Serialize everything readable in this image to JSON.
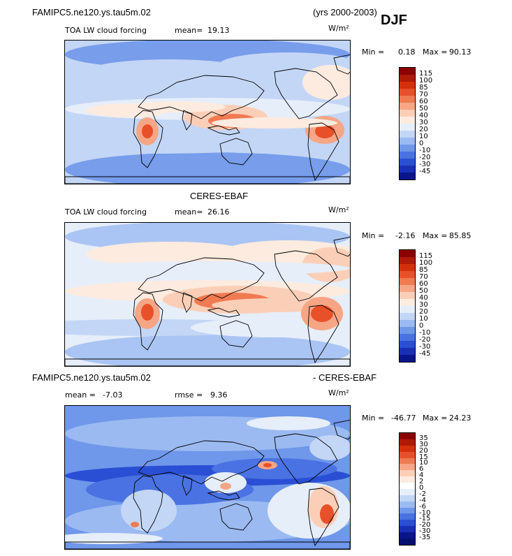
{
  "header": {
    "model": "FAMIPC5.ne120.ys.tau5m.02",
    "years": "(yrs 2000-2003)",
    "season": "DJF"
  },
  "panel1": {
    "var": "TOA LW cloud forcing",
    "mean_label": "mean=",
    "mean_value": "19.13",
    "units": "W/m²",
    "min_label": "Min =",
    "min_value": "0.18",
    "max_label": "Max =",
    "max_value": "90.13"
  },
  "panel2": {
    "title": "CERES-EBAF",
    "var": "TOA LW cloud forcing",
    "mean_label": "mean=",
    "mean_value": "26.16",
    "units": "W/m²",
    "min_label": "Min =",
    "min_value": "-2.16",
    "max_label": "Max =",
    "max_value": "85.85"
  },
  "panel3": {
    "title_left": "FAMIPC5.ne120.ys.tau5m.02",
    "title_right": "- CERES-EBAF",
    "mean_label": "mean =",
    "mean_value": "-7.03",
    "rmse_label": "rmse =",
    "rmse_value": "9.36",
    "units": "W/m²",
    "min_label": "Min =",
    "min_value": "-46.77",
    "max_label": "Max =",
    "max_value": "24.23"
  },
  "chart_data": [
    {
      "type": "heatmap",
      "title": "TOA LW cloud forcing",
      "colorbar_levels": [
        "115",
        "100",
        "85",
        "70",
        "60",
        "50",
        "40",
        "30",
        "20",
        "10",
        "0",
        "-10",
        "-20",
        "-30",
        "-45"
      ],
      "colors": [
        "#8b0000",
        "#b01a06",
        "#d4300c",
        "#e8502a",
        "#f07a52",
        "#f6a585",
        "#fbcfb7",
        "#fdebdf",
        "#e6eefa",
        "#c3d6f6",
        "#9bbaf1",
        "#6f97ea",
        "#4a72e2",
        "#2a4fd4",
        "#1a2fb8",
        "#0a148c"
      ]
    },
    {
      "type": "heatmap",
      "title": "CERES-EBAF",
      "colorbar_levels": [
        "115",
        "100",
        "85",
        "70",
        "60",
        "50",
        "40",
        "30",
        "20",
        "10",
        "0",
        "-10",
        "-20",
        "-30",
        "-45"
      ],
      "colors": [
        "#8b0000",
        "#b01a06",
        "#d4300c",
        "#e8502a",
        "#f07a52",
        "#f6a585",
        "#fbcfb7",
        "#fdebdf",
        "#e6eefa",
        "#c3d6f6",
        "#9bbaf1",
        "#6f97ea",
        "#4a72e2",
        "#2a4fd4",
        "#1a2fb8",
        "#0a148c"
      ]
    },
    {
      "type": "heatmap",
      "title": "FAMIPC5.ne120.ys.tau5m.02 - CERES-EBAF",
      "colorbar_levels": [
        "35",
        "30",
        "20",
        "15",
        "10",
        "6",
        "4",
        "2",
        "0",
        "-2",
        "-4",
        "-6",
        "-10",
        "-15",
        "-20",
        "-30",
        "-35"
      ],
      "colors": [
        "#8b0000",
        "#b01a06",
        "#d4300c",
        "#e8502a",
        "#f07a52",
        "#f6a585",
        "#fbcfb7",
        "#fdebdf",
        "#ffffff",
        "#e6eefa",
        "#c3d6f6",
        "#9bbaf1",
        "#6f97ea",
        "#4a72e2",
        "#2a4fd4",
        "#1a2fb8",
        "#0a148c",
        "#061070"
      ]
    }
  ]
}
